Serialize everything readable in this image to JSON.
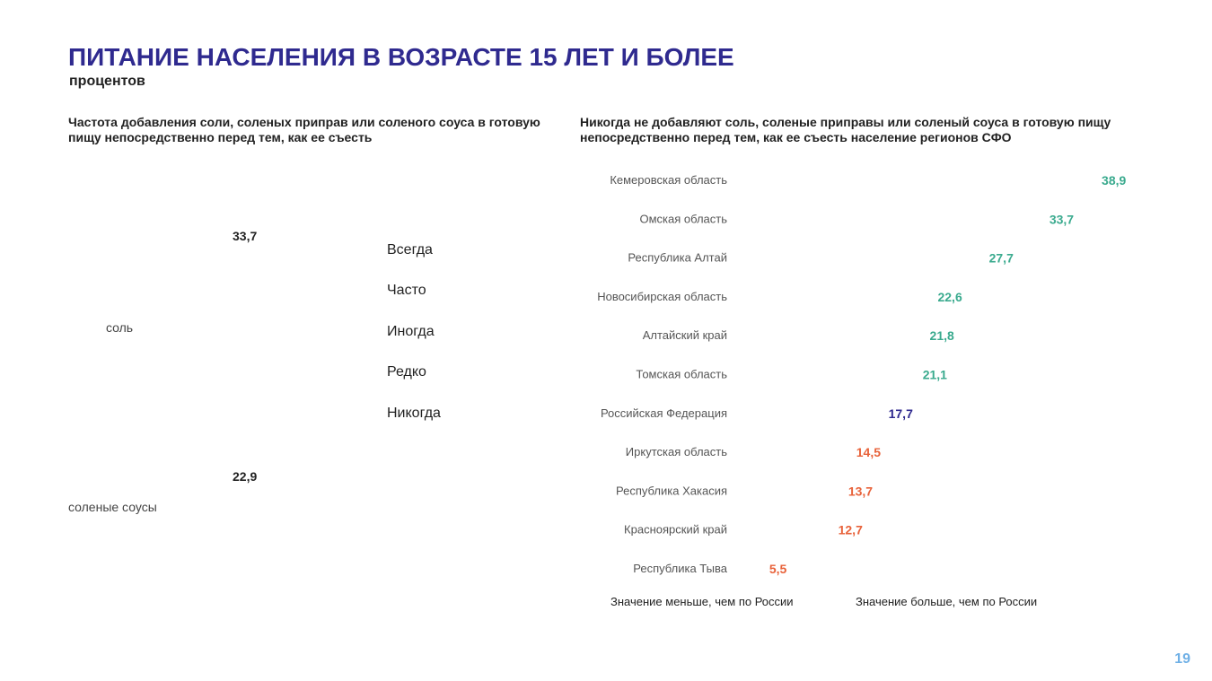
{
  "title": "ПИТАНИЕ НАСЕЛЕНИЯ В ВОЗРАСТЕ 15 ЛЕТ И БОЛЕЕ",
  "subtitle": "процентов",
  "page_number": "19",
  "chart_data": [
    {
      "type": "bar",
      "title": "Частота добавления соли, соленых приправ или соленого соуса в готовую пищу непосредственно перед тем, как ее съесть",
      "categories": [
        "соль",
        "соленые соусы"
      ],
      "legend_labels": [
        "Всегда",
        "Часто",
        "Иногда",
        "Редко",
        "Никогда"
      ],
      "series": [
        {
          "name": "Никогда",
          "values": [
            33.7,
            22.9
          ]
        }
      ],
      "value_labels": [
        "33,7",
        "22,9"
      ]
    },
    {
      "type": "bar",
      "title": "Никогда не добавляют  соль, соленые приправы или соленый соуса в готовую пищу непосредственно перед тем, как ее съесть население  регионов СФО",
      "categories": [
        "Кемеровская область",
        "Омская область",
        "Республика Алтай",
        "Новосибирская область",
        "Алтайский край",
        "Томская область",
        "Российская Федерация",
        "Иркутская область",
        "Республика Хакасия",
        "Красноярский край",
        "Республика Тыва"
      ],
      "values": [
        38.9,
        33.7,
        27.7,
        22.6,
        21.8,
        21.1,
        17.7,
        14.5,
        13.7,
        12.7,
        5.5
      ],
      "value_labels": [
        "38,9",
        "33,7",
        "27,7",
        "22,6",
        "21,8",
        "21,1",
        "17,7",
        "14,5",
        "13,7",
        "12,7",
        "5,5"
      ],
      "reference_category": "Российская Федерация",
      "legend": [
        "Значение меньше, чем по России",
        "Значение больше, чем по России"
      ],
      "colors": {
        "above": "#3aaa8e",
        "below": "#e8623a",
        "reference": "#2f2a8f"
      }
    }
  ]
}
